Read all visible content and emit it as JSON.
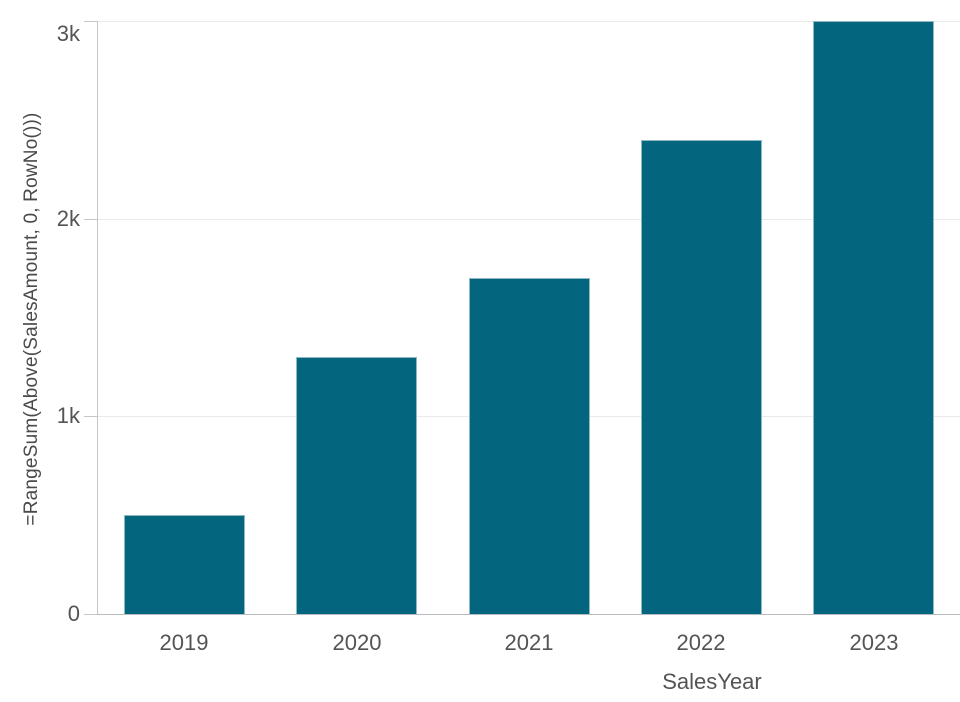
{
  "chart_data": {
    "type": "bar",
    "categories": [
      "2019",
      "2020",
      "2021",
      "2022",
      "2023"
    ],
    "values": [
      500,
      1300,
      1700,
      2400,
      3000
    ],
    "title": "",
    "xlabel": "SalesYear",
    "ylabel": "=RangeSum(Above(SalesAmount, 0, RowNo()))",
    "ylim": [
      0,
      3000
    ],
    "yticks": [
      {
        "value": 0,
        "label": "0"
      },
      {
        "value": 1000,
        "label": "1k"
      },
      {
        "value": 2000,
        "label": "2k"
      },
      {
        "value": 3000,
        "label": "3k"
      }
    ],
    "grid": "horizontal-on",
    "legend": "none",
    "bar_width_fraction": 0.7
  },
  "colors": {
    "bar": "#04657e",
    "bar_edge": "#8db8c4",
    "gridline": "#eaeaea",
    "axis_line": "#c4c7c9",
    "baseline": "#b9bcbe",
    "tick_text": "#545454",
    "axis_title_text": "#4a4a4a",
    "background": "#ffffff"
  }
}
